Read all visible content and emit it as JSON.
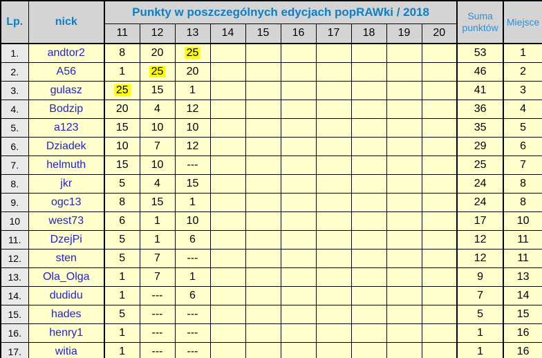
{
  "table": {
    "header": {
      "lp": "Lp.",
      "nick": "nick",
      "points_title": "Punkty w poszczególnych edycjach popRAWki / 2018",
      "editions": [
        "11",
        "12",
        "13",
        "14",
        "15",
        "16",
        "17",
        "18",
        "19",
        "20"
      ],
      "suma": "Suma punktów",
      "miejsce": "Miejsce"
    },
    "rows": [
      {
        "lp": "1.",
        "nick": "andtor2",
        "pts": [
          "8",
          "20",
          "25",
          "",
          "",
          "",
          "",
          "",
          "",
          ""
        ],
        "highlight": 2,
        "suma": "53",
        "miejsce": "1"
      },
      {
        "lp": "2.",
        "nick": "A56",
        "pts": [
          "1",
          "25",
          "20",
          "",
          "",
          "",
          "",
          "",
          "",
          ""
        ],
        "highlight": 1,
        "suma": "46",
        "miejsce": "2"
      },
      {
        "lp": "3.",
        "nick": "gulasz",
        "pts": [
          "25",
          "15",
          "1",
          "",
          "",
          "",
          "",
          "",
          "",
          ""
        ],
        "highlight": 0,
        "suma": "41",
        "miejsce": "3"
      },
      {
        "lp": "4.",
        "nick": "Bodzip",
        "pts": [
          "20",
          "4",
          "12",
          "",
          "",
          "",
          "",
          "",
          "",
          ""
        ],
        "highlight": -1,
        "suma": "36",
        "miejsce": "4"
      },
      {
        "lp": "5.",
        "nick": "a123",
        "pts": [
          "15",
          "10",
          "10",
          "",
          "",
          "",
          "",
          "",
          "",
          ""
        ],
        "highlight": -1,
        "suma": "35",
        "miejsce": "5"
      },
      {
        "lp": "6.",
        "nick": "Dziadek",
        "pts": [
          "10",
          "7",
          "12",
          "",
          "",
          "",
          "",
          "",
          "",
          ""
        ],
        "highlight": -1,
        "suma": "29",
        "miejsce": "6"
      },
      {
        "lp": "7.",
        "nick": "helmuth",
        "pts": [
          "15",
          "10",
          "---",
          "",
          "",
          "",
          "",
          "",
          "",
          ""
        ],
        "highlight": -1,
        "suma": "25",
        "miejsce": "7"
      },
      {
        "lp": "8.",
        "nick": "jkr",
        "pts": [
          "5",
          "4",
          "15",
          "",
          "",
          "",
          "",
          "",
          "",
          ""
        ],
        "highlight": -1,
        "suma": "24",
        "miejsce": "8"
      },
      {
        "lp": "9.",
        "nick": "ogc13",
        "pts": [
          "8",
          "15",
          "1",
          "",
          "",
          "",
          "",
          "",
          "",
          ""
        ],
        "highlight": -1,
        "suma": "24",
        "miejsce": "8"
      },
      {
        "lp": "10",
        "nick": "west73",
        "pts": [
          "6",
          "1",
          "10",
          "",
          "",
          "",
          "",
          "",
          "",
          ""
        ],
        "highlight": -1,
        "suma": "17",
        "miejsce": "10"
      },
      {
        "lp": "11.",
        "nick": "DzejPi",
        "pts": [
          "5",
          "1",
          "6",
          "",
          "",
          "",
          "",
          "",
          "",
          ""
        ],
        "highlight": -1,
        "suma": "12",
        "miejsce": "11"
      },
      {
        "lp": "12.",
        "nick": "sten",
        "pts": [
          "5",
          "7",
          "---",
          "",
          "",
          "",
          "",
          "",
          "",
          ""
        ],
        "highlight": -1,
        "suma": "12",
        "miejsce": "11"
      },
      {
        "lp": "13.",
        "nick": "Ola_Olga",
        "pts": [
          "1",
          "7",
          "1",
          "",
          "",
          "",
          "",
          "",
          "",
          ""
        ],
        "highlight": -1,
        "suma": "9",
        "miejsce": "13"
      },
      {
        "lp": "14.",
        "nick": "dudidu",
        "pts": [
          "1",
          "---",
          "6",
          "",
          "",
          "",
          "",
          "",
          "",
          ""
        ],
        "highlight": -1,
        "suma": "7",
        "miejsce": "14"
      },
      {
        "lp": "15.",
        "nick": "hades",
        "pts": [
          "5",
          "---",
          "---",
          "",
          "",
          "",
          "",
          "",
          "",
          ""
        ],
        "highlight": -1,
        "suma": "5",
        "miejsce": "15"
      },
      {
        "lp": "16.",
        "nick": "henry1",
        "pts": [
          "1",
          "---",
          "---",
          "",
          "",
          "",
          "",
          "",
          "",
          ""
        ],
        "highlight": -1,
        "suma": "1",
        "miejsce": "16"
      },
      {
        "lp": "17.",
        "nick": "witia",
        "pts": [
          "1",
          "---",
          "---",
          "",
          "",
          "",
          "",
          "",
          "",
          ""
        ],
        "highlight": -1,
        "suma": "1",
        "miejsce": "16"
      }
    ]
  },
  "colors": {
    "header_bg": "#d4d4d4",
    "lp_col_bg": "#e9e9e9",
    "row_bg": "#ffffcc",
    "highlight_bg": "#ffff00",
    "title_blue": "#0e7fc4",
    "subhead_blue": "#2e8fd6",
    "nick_blue": "#2323cf",
    "grid": "#000000"
  },
  "chart_data": {
    "type": "table",
    "title": "Punkty w poszczególnych edycjach popRAWki / 2018",
    "columns": [
      "Lp.",
      "nick",
      "11",
      "12",
      "13",
      "14",
      "15",
      "16",
      "17",
      "18",
      "19",
      "20",
      "Suma punktów",
      "Miejsce"
    ],
    "missing_marker": "---",
    "rows": [
      [
        "1.",
        "andtor2",
        8,
        20,
        25,
        "",
        "",
        "",
        "",
        "",
        "",
        "",
        53,
        1
      ],
      [
        "2.",
        "A56",
        1,
        25,
        20,
        "",
        "",
        "",
        "",
        "",
        "",
        "",
        46,
        2
      ],
      [
        "3.",
        "gulasz",
        25,
        15,
        1,
        "",
        "",
        "",
        "",
        "",
        "",
        "",
        41,
        3
      ],
      [
        "4.",
        "Bodzip",
        20,
        4,
        12,
        "",
        "",
        "",
        "",
        "",
        "",
        "",
        36,
        4
      ],
      [
        "5.",
        "a123",
        15,
        10,
        10,
        "",
        "",
        "",
        "",
        "",
        "",
        "",
        35,
        5
      ],
      [
        "6.",
        "Dziadek",
        10,
        7,
        12,
        "",
        "",
        "",
        "",
        "",
        "",
        "",
        29,
        6
      ],
      [
        "7.",
        "helmuth",
        15,
        10,
        "---",
        "",
        "",
        "",
        "",
        "",
        "",
        "",
        25,
        7
      ],
      [
        "8.",
        "jkr",
        5,
        4,
        15,
        "",
        "",
        "",
        "",
        "",
        "",
        "",
        24,
        8
      ],
      [
        "9.",
        "ogc13",
        8,
        15,
        1,
        "",
        "",
        "",
        "",
        "",
        "",
        "",
        24,
        8
      ],
      [
        "10",
        "west73",
        6,
        1,
        10,
        "",
        "",
        "",
        "",
        "",
        "",
        "",
        17,
        10
      ],
      [
        "11.",
        "DzejPi",
        5,
        1,
        6,
        "",
        "",
        "",
        "",
        "",
        "",
        "",
        12,
        11
      ],
      [
        "12.",
        "sten",
        5,
        7,
        "---",
        "",
        "",
        "",
        "",
        "",
        "",
        "",
        12,
        11
      ],
      [
        "13.",
        "Ola_Olga",
        1,
        7,
        1,
        "",
        "",
        "",
        "",
        "",
        "",
        "",
        9,
        13
      ],
      [
        "14.",
        "dudidu",
        1,
        "---",
        6,
        "",
        "",
        "",
        "",
        "",
        "",
        "",
        7,
        14
      ],
      [
        "15.",
        "hades",
        5,
        "---",
        "---",
        "",
        "",
        "",
        "",
        "",
        "",
        "",
        5,
        15
      ],
      [
        "16.",
        "henry1",
        1,
        "---",
        "---",
        "",
        "",
        "",
        "",
        "",
        "",
        "",
        1,
        16
      ],
      [
        "17.",
        "witia",
        1,
        "---",
        "---",
        "",
        "",
        "",
        "",
        "",
        "",
        "",
        1,
        16
      ]
    ],
    "highlighted_cells": [
      {
        "nick": "andtor2",
        "edition": "13",
        "value": 25
      },
      {
        "nick": "A56",
        "edition": "12",
        "value": 25
      },
      {
        "nick": "gulasz",
        "edition": "11",
        "value": 25
      }
    ]
  }
}
